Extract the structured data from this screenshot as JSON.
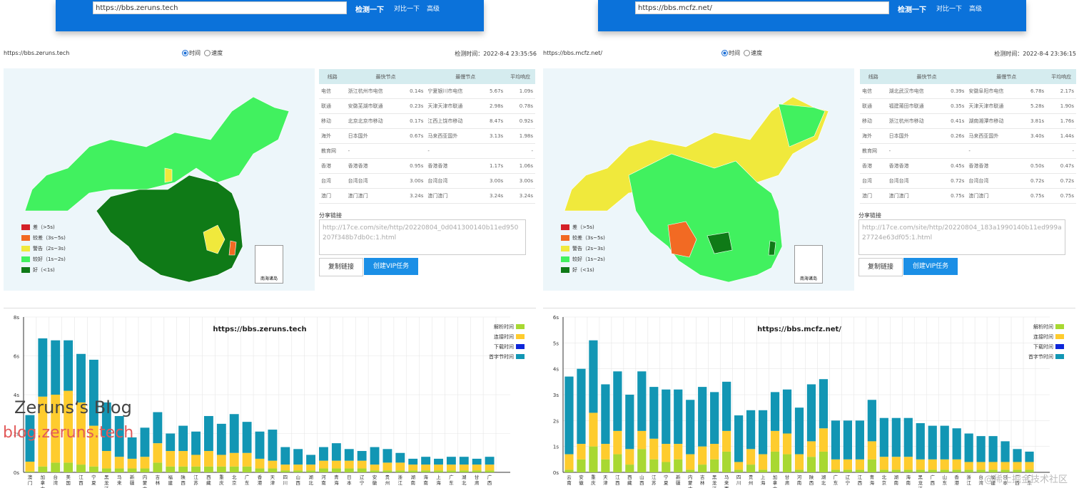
{
  "toolbar": {
    "check": "检测一下",
    "compare": "对比一下",
    "advanced": "高级"
  },
  "mode": {
    "time": "时间",
    "speed": "速度"
  },
  "legend": [
    {
      "label": "差（>5s)",
      "color": "#d42027"
    },
    {
      "label": "较差（3s~5s)",
      "color": "#f26a23"
    },
    {
      "label": "警告（2s~3s)",
      "color": "#f0e93c"
    },
    {
      "label": "较好（1s~2s)",
      "color": "#41f15f"
    },
    {
      "label": "好（<1s)",
      "color": "#0f7a17"
    }
  ],
  "nanhai": "南海诸岛",
  "table_headers": [
    "线路",
    "最快节点",
    "",
    "最慢节点",
    "",
    "平均响应"
  ],
  "share_label": "分享链接",
  "copy_btn": "复制链接",
  "vip_btn": "创建VIP任务",
  "chart_legend": [
    {
      "label": "解析时间",
      "color": "#a8d832"
    },
    {
      "label": "连接时间",
      "color": "#fecc2e"
    },
    {
      "label": "下载时间",
      "color": "#0e26d8"
    },
    {
      "label": "首字节时间",
      "color": "#1296b4"
    }
  ],
  "left": {
    "url": "https://bbs.zeruns.tech",
    "site": "https://bbs.zeruns.tech",
    "time": "检测时间：2022-8-4 23:35:56",
    "share": "http://17ce.com/site/http/20220804_0d041300140b11ed950207f348b7db0c:1.html",
    "rows": [
      [
        "电信",
        "浙江杭州市电信",
        "0.14s",
        "宁夏银川市电信",
        "5.67s",
        "1.09s"
      ],
      [
        "联通",
        "安徽芜湖市联通",
        "0.23s",
        "天津天津市联通",
        "2.98s",
        "0.78s"
      ],
      [
        "移动",
        "北京北京市移动",
        "0.17s",
        "江西上饶市移动",
        "8.47s",
        "0.92s"
      ],
      [
        "海外",
        "日本国外",
        "0.67s",
        "马来西亚国外",
        "3.13s",
        "1.98s"
      ],
      [
        "教育网",
        "-",
        "",
        "-",
        "",
        "-"
      ],
      [
        "香港",
        "香港香港",
        "0.95s",
        "香港香港",
        "1.17s",
        "1.06s"
      ],
      [
        "台湾",
        "台湾台湾",
        "3.00s",
        "台湾台湾",
        "3.00s",
        "3.00s"
      ],
      [
        "澳门",
        "澳门澳门",
        "3.24s",
        "澳门澳门",
        "3.24s",
        "3.24s"
      ]
    ],
    "chart_data": {
      "type": "bar",
      "title": "https://bbs.zeruns.tech",
      "yticks": [
        "0s",
        "2s",
        "4s",
        "6s",
        "8s"
      ],
      "ylim": [
        0,
        8
      ],
      "categories": [
        "澳门",
        "加拿大",
        "台湾",
        "美国",
        "江西",
        "宁夏",
        "黑龙江",
        "马来",
        "新疆",
        "内蒙古",
        "吉林",
        "福建",
        "陕西",
        "江苏",
        "西藏",
        "重庆",
        "北京",
        "广东",
        "香港",
        "天津",
        "四川",
        "山西",
        "湖北",
        "河南",
        "青海",
        "日本",
        "辽宁",
        "安徽",
        "贵州",
        "浙江",
        "湖南",
        "海南",
        "上海",
        "广东",
        "湖北",
        "甘肃",
        "广西"
      ],
      "series": [
        {
          "name": "解析时间",
          "values": [
            0.05,
            0.3,
            0.5,
            0.5,
            0.4,
            0.3,
            0.2,
            0.2,
            0.2,
            0.2,
            0.5,
            0.3,
            0.3,
            0.3,
            0.3,
            0.3,
            0.3,
            0.3,
            0.2,
            0.2,
            0.1,
            0.1,
            0.1,
            0.2,
            0.2,
            0.2,
            0.2,
            0.1,
            0.1,
            0.1,
            0.1,
            0.1,
            0.1,
            0.1,
            0.1,
            0.1,
            0.1
          ]
        },
        {
          "name": "连接时间",
          "values": [
            0.5,
            3.6,
            3.5,
            3.7,
            3.2,
            2.1,
            0.9,
            0.6,
            0.5,
            0.6,
            1.0,
            0.8,
            0.8,
            0.6,
            0.8,
            0.6,
            0.7,
            0.7,
            0.5,
            0.4,
            0.3,
            0.3,
            0.3,
            0.4,
            0.4,
            0.4,
            0.4,
            0.3,
            0.4,
            0.4,
            0.3,
            0.3,
            0.3,
            0.3,
            0.3,
            0.3,
            0.3
          ]
        },
        {
          "name": "下载时间",
          "values": [
            0,
            0,
            0,
            0,
            0,
            0,
            0,
            0,
            0,
            0,
            0,
            0,
            0,
            0,
            0,
            0,
            0,
            0,
            0,
            0,
            0,
            0,
            0,
            0,
            0,
            0,
            0,
            0,
            0,
            0,
            0,
            0,
            0,
            0,
            0,
            0,
            0
          ]
        },
        {
          "name": "首字节时间",
          "values": [
            2.4,
            3.0,
            2.8,
            2.6,
            2.5,
            3.4,
            2.5,
            2.1,
            1.1,
            1.5,
            1.6,
            0.9,
            1.3,
            1.2,
            1.8,
            1.6,
            2.0,
            1.6,
            1.4,
            1.6,
            0.9,
            0.8,
            0.5,
            0.7,
            0.9,
            0.6,
            0.5,
            0.9,
            0.7,
            0.5,
            0.3,
            0.4,
            0.3,
            0.4,
            0.4,
            0.3,
            0.4
          ]
        }
      ]
    }
  },
  "right": {
    "url": "https://bbs.mcfz.net/",
    "site": "https://bbs.mcfz.net/",
    "time": "检测时间：2022-8-4 23:36:15",
    "share": "http://17ce.com/site/http/20220804_183a1990140b11ed999a27724e63df05:1.html",
    "rows": [
      [
        "电信",
        "湖北武汉市电信",
        "0.39s",
        "安徽阜阳市电信",
        "6.78s",
        "2.17s"
      ],
      [
        "联通",
        "福建莆田市联通",
        "0.35s",
        "天津天津市联通",
        "5.28s",
        "1.90s"
      ],
      [
        "移动",
        "浙江杭州市移动",
        "0.41s",
        "湖南湘潭市移动",
        "3.81s",
        "1.76s"
      ],
      [
        "海外",
        "日本国外",
        "0.26s",
        "马来西亚国外",
        "3.40s",
        "1.44s"
      ],
      [
        "教育网",
        "-",
        "",
        "-",
        "",
        "-"
      ],
      [
        "香港",
        "香港香港",
        "0.45s",
        "香港香港",
        "0.50s",
        "0.47s"
      ],
      [
        "台湾",
        "台湾台湾",
        "0.72s",
        "台湾台湾",
        "0.72s",
        "0.72s"
      ],
      [
        "澳门",
        "澳门澳门",
        "0.75s",
        "澳门澳门",
        "0.75s",
        "0.75s"
      ]
    ],
    "chart_data": {
      "type": "bar",
      "title": "https://bbs.mcfz.net/",
      "yticks": [
        "0s",
        "1s",
        "2s",
        "3s",
        "4s",
        "5s",
        "6s"
      ],
      "ylim": [
        0,
        6
      ],
      "categories": [
        "云南",
        "安徽",
        "重庆",
        "天津",
        "江西",
        "西藏",
        "山西",
        "江苏",
        "宁夏",
        "新疆",
        "内蒙古",
        "吉林",
        "黑龙江",
        "马来西亚",
        "四川",
        "贵州",
        "上海",
        "加拿大",
        "甘肃",
        "河南",
        "陕西",
        "湖北",
        "广东",
        "辽宁",
        "江西",
        "青海",
        "北京",
        "湖南",
        "海南",
        "黑龙江",
        "广西",
        "山东",
        "香港",
        "浙江",
        "台湾",
        "福建",
        "日本",
        "广西",
        "广东"
      ],
      "series": [
        {
          "name": "解析时间",
          "values": [
            0.1,
            0.5,
            1.0,
            0.5,
            0.7,
            0.3,
            0.9,
            0.5,
            0.4,
            0.5,
            0.1,
            0.3,
            0.5,
            0.8,
            0.1,
            0.3,
            0.1,
            0.8,
            0.7,
            0.1,
            0.6,
            0.8,
            0.1,
            0.1,
            0.1,
            0.5,
            0.1,
            0.1,
            0.1,
            0.1,
            0.1,
            0.1,
            0.1,
            0.1,
            0.1,
            0.1,
            0.1,
            0.1,
            0.1
          ]
        },
        {
          "name": "连接时间",
          "values": [
            0.6,
            0.6,
            1.3,
            0.6,
            0.9,
            0.6,
            0.7,
            0.8,
            0.7,
            0.6,
            0.6,
            0.7,
            0.6,
            0.8,
            0.3,
            0.6,
            0.6,
            0.8,
            0.8,
            0.6,
            0.6,
            0.9,
            0.4,
            0.4,
            0.4,
            0.7,
            0.5,
            0.5,
            0.5,
            0.4,
            0.4,
            0.4,
            0.4,
            0.3,
            0.3,
            0.3,
            0.3,
            0.3,
            0.3
          ]
        },
        {
          "name": "下载时间",
          "values": [
            0,
            0,
            0,
            0,
            0,
            0,
            0,
            0,
            0,
            0,
            0,
            0,
            0,
            0,
            0,
            0,
            0,
            0,
            0,
            0,
            0,
            0,
            0,
            0,
            0,
            0,
            0,
            0,
            0,
            0,
            0,
            0,
            0,
            0,
            0,
            0,
            0,
            0,
            0
          ]
        },
        {
          "name": "首字节时间",
          "values": [
            3.0,
            2.9,
            2.8,
            2.3,
            2.3,
            2.1,
            2.3,
            2.0,
            2.1,
            2.1,
            2.1,
            2.3,
            2.0,
            1.9,
            1.8,
            1.5,
            1.7,
            1.5,
            1.7,
            1.8,
            2.2,
            1.9,
            1.5,
            1.5,
            1.5,
            1.6,
            1.5,
            1.5,
            1.5,
            1.4,
            1.3,
            1.3,
            1.2,
            1.1,
            1.0,
            1.0,
            0.8,
            0.5,
            0.4
          ]
        }
      ]
    }
  },
  "watermark": {
    "line1": "Zeruns‘s Blog",
    "line2": "blog.zeruns.tech",
    "line3": "@稀土掘金技术社区"
  }
}
